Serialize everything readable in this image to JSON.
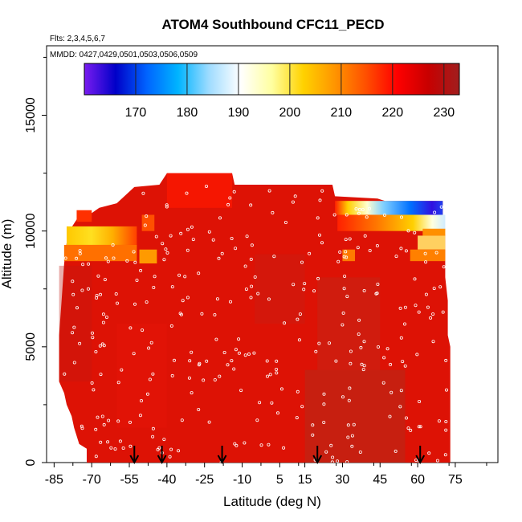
{
  "chart_data": {
    "type": "heatmap",
    "title": "ATOM4 Southbound CFC11_PECD",
    "flights_note": "Flts: 2,3,4,5,6,7",
    "dates_note": "MMDD: 0427,0429,0501,0503,0506,0509",
    "xlabel": "Latitude (deg N)",
    "ylabel": "Altitude (m)",
    "xlim": [
      -88,
      92
    ],
    "ylim": [
      0,
      18000
    ],
    "x_ticks": [
      -85,
      -70,
      -55,
      -40,
      -25,
      -10,
      5,
      15,
      30,
      45,
      60,
      75
    ],
    "y_ticks": [
      0,
      5000,
      10000,
      15000
    ],
    "colorbar": {
      "range": [
        160,
        233
      ],
      "ticks": [
        170,
        180,
        190,
        200,
        210,
        220,
        230
      ],
      "colors": [
        "#7a1cf0",
        "#0000c8",
        "#0064ff",
        "#00b4ff",
        "#a0dcff",
        "#ffffff",
        "#ffffa0",
        "#ffd200",
        "#ff9600",
        "#ff5000",
        "#ff0000",
        "#c80000",
        "#a01e1e"
      ]
    },
    "data_summary": {
      "dominant_value_range": [
        222,
        230
      ],
      "upper_layer_north": {
        "lat_range": [
          27,
          71
        ],
        "alt_range": [
          9500,
          11500
        ],
        "value_range": [
          162,
          215
        ]
      },
      "upper_layer_south": {
        "lat_range": [
          -82,
          -52
        ],
        "alt_range": [
          8600,
          10200
        ],
        "value_range": [
          208,
          218
        ]
      }
    },
    "sounding_markers_lat": [
      -53,
      -42,
      -18,
      20,
      61
    ],
    "grid": false,
    "legend_placement": "top"
  }
}
